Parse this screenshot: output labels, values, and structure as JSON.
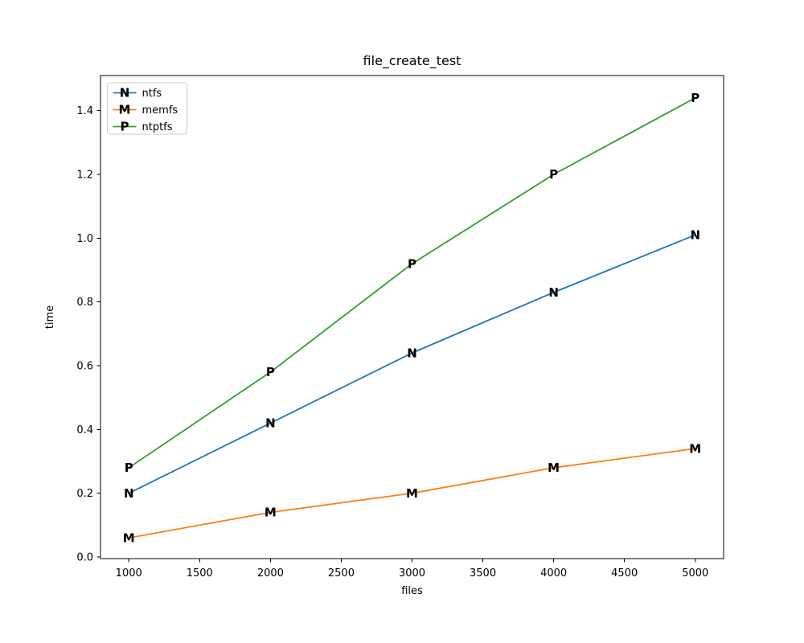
{
  "figure": {
    "background": "#ffffff"
  },
  "chart_data": {
    "type": "line",
    "title": "file_create_test",
    "xlabel": "files",
    "ylabel": "time",
    "x": [
      1000,
      2000,
      3000,
      4000,
      5000
    ],
    "series": [
      {
        "name": "ntfs",
        "marker": "N",
        "color": "#1f77b4",
        "values": [
          0.2,
          0.42,
          0.64,
          0.83,
          1.01
        ]
      },
      {
        "name": "memfs",
        "marker": "M",
        "color": "#ff7f0e",
        "values": [
          0.06,
          0.14,
          0.2,
          0.28,
          0.34
        ]
      },
      {
        "name": "ntptfs",
        "marker": "P",
        "color": "#2ca02c",
        "values": [
          0.28,
          0.58,
          0.92,
          1.2,
          1.44
        ]
      }
    ],
    "xticks": [
      1000,
      1500,
      2000,
      2500,
      3000,
      3500,
      4000,
      4500,
      5000
    ],
    "xtick_labels": [
      "1000",
      "1500",
      "2000",
      "2500",
      "3000",
      "3500",
      "4000",
      "4500",
      "5000"
    ],
    "yticks": [
      0.0,
      0.2,
      0.4,
      0.6,
      0.8,
      1.0,
      1.2,
      1.4
    ],
    "ytick_labels": [
      "0.0",
      "0.2",
      "0.4",
      "0.6",
      "0.8",
      "1.0",
      "1.2",
      "1.4"
    ],
    "xlim": [
      800,
      5200
    ],
    "ylim": [
      -0.005,
      1.51
    ],
    "grid": false,
    "legend": {
      "position": "upper left",
      "labels": [
        "ntfs",
        "memfs",
        "ntptfs"
      ],
      "border_color": "#cccccc",
      "background": "#ffffff"
    },
    "axis_color": "#000000",
    "text_color": "#000000"
  }
}
